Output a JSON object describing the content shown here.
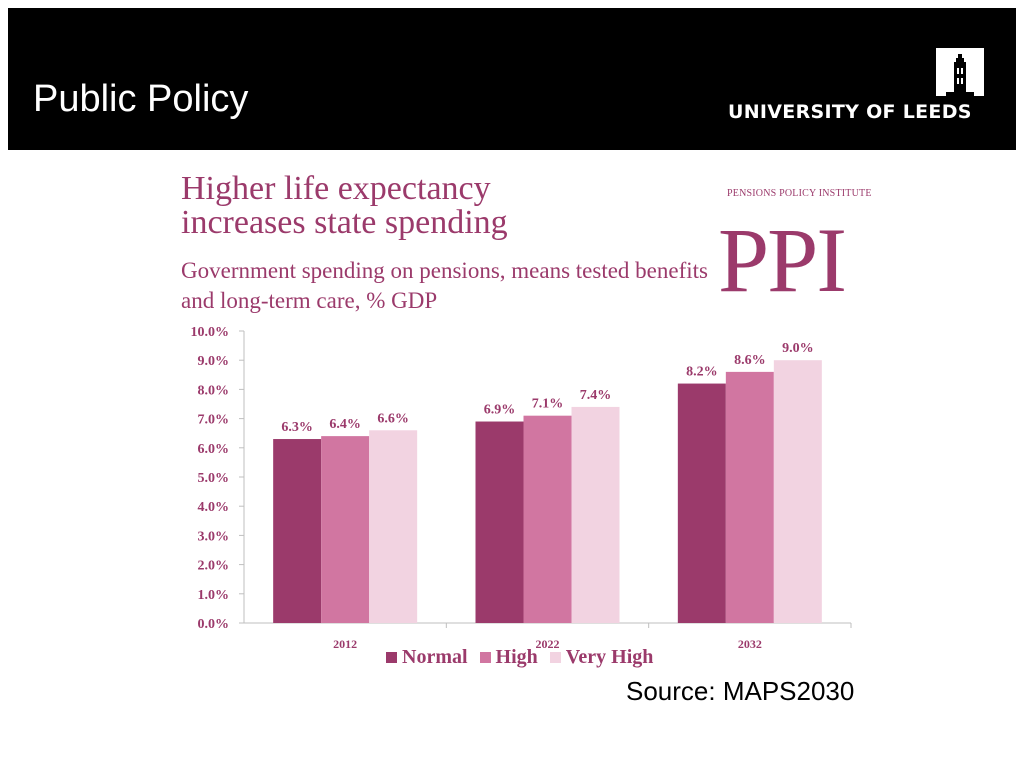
{
  "slide": {
    "title": "Public Policy",
    "source": "Source: MAPS2030"
  },
  "logo": {
    "text": "UNIVERSITY OF LEEDS",
    "icon": "university-tower-icon"
  },
  "publisher": {
    "small": "PENSIONS POLICY INSTITUTE",
    "big": "PPI"
  },
  "colors": {
    "accent": "#9b3a6b",
    "normal": "#9b3a6b",
    "high": "#d176a1",
    "very_high": "#f2d3e1",
    "header_bg": "#000000"
  },
  "chart_data": {
    "type": "bar",
    "title_lines": [
      "Higher life expectancy",
      "increases state spending"
    ],
    "subtitle": "Government spending on pensions, means tested benefits and long-term care, % GDP",
    "categories": [
      "2012",
      "2022",
      "2032"
    ],
    "series": [
      {
        "name": "Normal",
        "values": [
          6.3,
          6.9,
          8.2
        ],
        "labels": [
          "6.3%",
          "6.9%",
          "8.2%"
        ]
      },
      {
        "name": "High",
        "values": [
          6.4,
          7.1,
          8.6
        ],
        "labels": [
          "6.4%",
          "7.1%",
          "8.6%"
        ]
      },
      {
        "name": "Very High",
        "values": [
          6.6,
          7.4,
          9.0
        ],
        "labels": [
          "6.6%",
          "7.4%",
          "9.0%"
        ]
      }
    ],
    "ylim": [
      0,
      10
    ],
    "yticks": [
      0,
      1,
      2,
      3,
      4,
      5,
      6,
      7,
      8,
      9,
      10
    ],
    "ytick_labels": [
      "0.0%",
      "1.0%",
      "2.0%",
      "3.0%",
      "4.0%",
      "5.0%",
      "6.0%",
      "7.0%",
      "8.0%",
      "9.0%",
      "10.0%"
    ],
    "grid": false,
    "legend_position": "bottom"
  }
}
